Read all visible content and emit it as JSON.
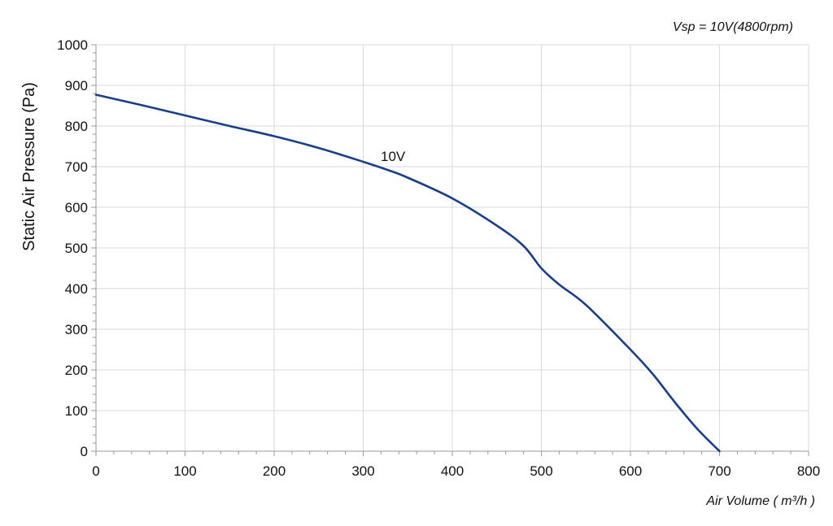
{
  "chart_data": {
    "type": "line",
    "title": "",
    "annotation": "Vsp = 10V(4800rpm)",
    "xlabel": "Air Volume ( m³/h )",
    "ylabel": "Static Air Pressure  (Pa)",
    "xlim": [
      0,
      800
    ],
    "ylim": [
      0,
      1000
    ],
    "x_ticks": [
      0,
      100,
      200,
      300,
      400,
      500,
      600,
      700,
      800
    ],
    "y_ticks": [
      0,
      100,
      200,
      300,
      400,
      500,
      600,
      700,
      800,
      900,
      1000
    ],
    "grid": true,
    "colors": {
      "series": "#1a3f8a",
      "grid": "#d9d9d9",
      "axis": "#999999"
    },
    "series": [
      {
        "name": "10V",
        "x": [
          0,
          50,
          100,
          150,
          200,
          250,
          300,
          330,
          350,
          400,
          450,
          480,
          500,
          520,
          550,
          600,
          625,
          650,
          675,
          700
        ],
        "y": [
          877,
          852,
          826,
          800,
          775,
          746,
          712,
          690,
          673,
          622,
          555,
          505,
          450,
          410,
          360,
          250,
          190,
          120,
          55,
          0
        ]
      }
    ]
  }
}
